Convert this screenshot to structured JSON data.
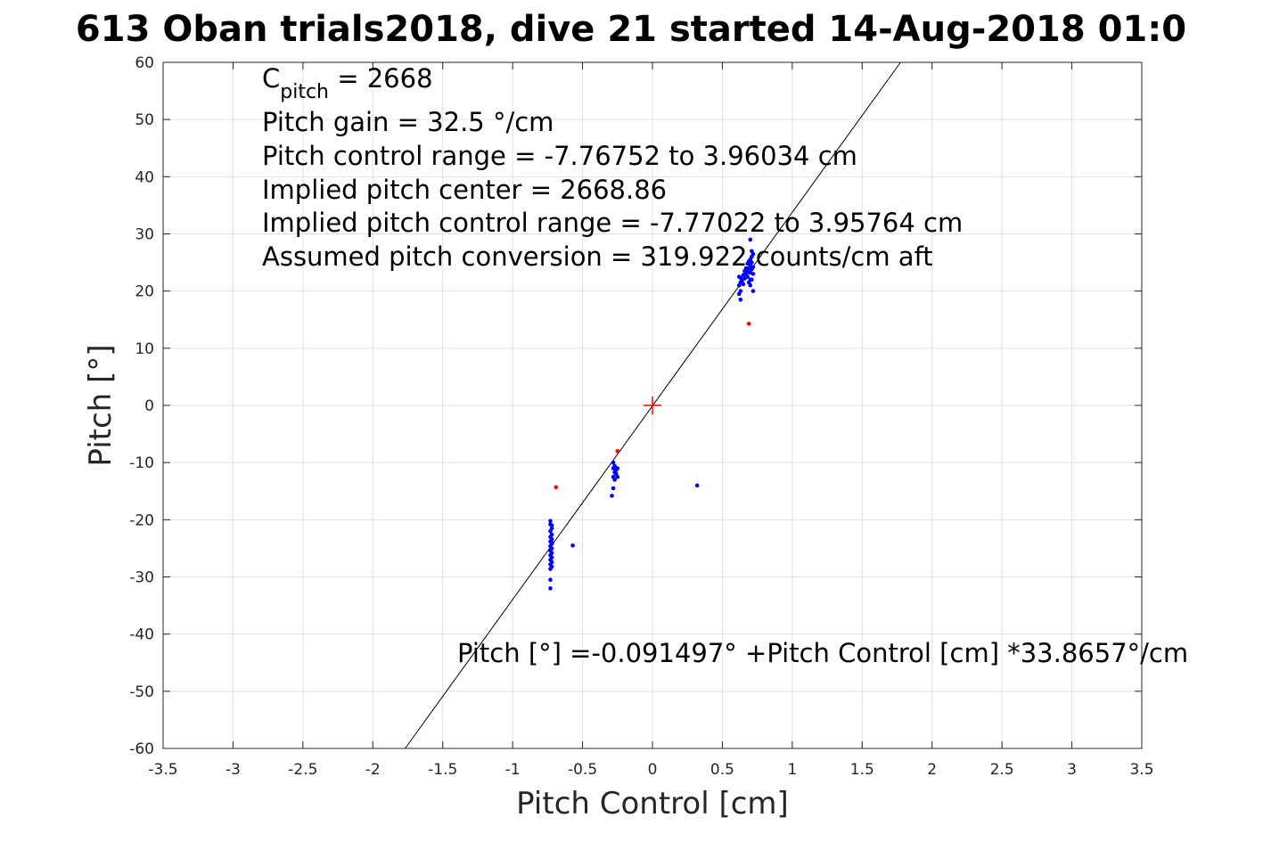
{
  "chart_data": {
    "type": "scatter",
    "title": "613 Oban trials2018, dive 21 started 14-Aug-2018 01:0",
    "xlabel": "Pitch Control [cm]",
    "ylabel": "Pitch [°]",
    "xlim": [
      -3.5,
      3.5
    ],
    "ylim": [
      -60,
      60
    ],
    "xticks": [
      -3.5,
      -3,
      -2.5,
      -2,
      -1.5,
      -1,
      -0.5,
      0,
      0.5,
      1,
      1.5,
      2,
      2.5,
      3,
      3.5
    ],
    "xtick_labels": [
      "-3.5",
      "-3",
      "-2.5",
      "-2",
      "-1.5",
      "-1",
      "-0.5",
      "0",
      "0.5",
      "1",
      "1.5",
      "2",
      "2.5",
      "3",
      "3.5"
    ],
    "yticks": [
      60,
      50,
      40,
      30,
      20,
      10,
      0,
      -10,
      -20,
      -30,
      -40,
      -50,
      -60
    ],
    "ytick_labels": [
      "60",
      "50",
      "40",
      "30",
      "20",
      "10",
      "0",
      "-10",
      "-20",
      "-30",
      "-40",
      "-50",
      "-60"
    ],
    "grid": true,
    "annotations": {
      "cpitch_base": "C",
      "cpitch_sub": "pitch",
      "cpitch_value": " = 2668",
      "lines": [
        "Pitch gain = 32.5 °/cm",
        "Pitch control range = -7.76752 to 3.96034 cm",
        "Implied pitch center = 2668.86",
        "Implied pitch control range = -7.77022 to 3.95764 cm",
        "Assumed pitch conversion = 319.922 counts/cm aft"
      ],
      "fit_equation": "Pitch [°] =-0.091497° +Pitch Control [cm] *33.8657°/cm"
    },
    "fit_line": {
      "intercept": -0.091497,
      "slope": 33.8657,
      "color": "#000000"
    },
    "center_marker": {
      "x": 0,
      "y": 0,
      "color": "#ff0000",
      "marker": "plus"
    },
    "series": [
      {
        "color": "#0000ff",
        "points": [
          [
            -0.73,
            -20.2
          ],
          [
            -0.73,
            -20.8
          ],
          [
            -0.72,
            -21.5
          ],
          [
            -0.73,
            -22.0
          ],
          [
            -0.72,
            -22.6
          ],
          [
            -0.73,
            -23.0
          ],
          [
            -0.72,
            -23.4
          ],
          [
            -0.73,
            -23.8
          ],
          [
            -0.72,
            -24.2
          ],
          [
            -0.73,
            -24.6
          ],
          [
            -0.72,
            -25.0
          ],
          [
            -0.73,
            -25.4
          ],
          [
            -0.72,
            -25.8
          ],
          [
            -0.73,
            -26.2
          ],
          [
            -0.72,
            -26.6
          ],
          [
            -0.73,
            -27.0
          ],
          [
            -0.72,
            -27.4
          ],
          [
            -0.73,
            -27.8
          ],
          [
            -0.72,
            -28.2
          ],
          [
            -0.73,
            -28.6
          ],
          [
            -0.72,
            -21.0
          ],
          [
            -0.72,
            -24.0
          ],
          [
            -0.73,
            -30.5
          ],
          [
            -0.73,
            -32.0
          ],
          [
            -0.57,
            -24.5
          ],
          [
            -0.28,
            -10.0
          ],
          [
            -0.27,
            -10.6
          ],
          [
            -0.28,
            -11.0
          ],
          [
            -0.26,
            -11.3
          ],
          [
            -0.27,
            -11.7
          ],
          [
            -0.26,
            -12.0
          ],
          [
            -0.28,
            -12.5
          ],
          [
            -0.25,
            -12.5
          ],
          [
            -0.27,
            -13.0
          ],
          [
            -0.28,
            -14.5
          ],
          [
            -0.29,
            -15.8
          ],
          [
            -0.25,
            -11.0
          ],
          [
            0.32,
            -14.0
          ],
          [
            0.62,
            21.0
          ],
          [
            0.63,
            21.5
          ],
          [
            0.64,
            22.0
          ],
          [
            0.62,
            22.5
          ],
          [
            0.63,
            20.0
          ],
          [
            0.62,
            19.5
          ],
          [
            0.63,
            18.5
          ],
          [
            0.65,
            21.2
          ],
          [
            0.66,
            22.2
          ],
          [
            0.67,
            23.0
          ],
          [
            0.68,
            23.5
          ],
          [
            0.69,
            24.0
          ],
          [
            0.7,
            24.5
          ],
          [
            0.71,
            25.0
          ],
          [
            0.7,
            25.5
          ],
          [
            0.71,
            26.0
          ],
          [
            0.72,
            26.5
          ],
          [
            0.7,
            22.0
          ],
          [
            0.69,
            21.5
          ],
          [
            0.68,
            22.5
          ],
          [
            0.67,
            24.0
          ],
          [
            0.66,
            23.5
          ],
          [
            0.65,
            22.8
          ],
          [
            0.64,
            21.8
          ],
          [
            0.63,
            22.3
          ],
          [
            0.7,
            23.2
          ],
          [
            0.71,
            23.8
          ],
          [
            0.72,
            24.2
          ],
          [
            0.72,
            23.0
          ],
          [
            0.71,
            22.0
          ],
          [
            0.7,
            21.0
          ],
          [
            0.72,
            20.0
          ],
          [
            0.7,
            29.0
          ],
          [
            0.71,
            27.0
          ],
          [
            0.69,
            25.2
          ],
          [
            0.68,
            24.8
          ]
        ]
      },
      {
        "color": "#ff0000",
        "points": [
          [
            -0.69,
            -14.3
          ],
          [
            -0.25,
            -8.0
          ],
          [
            0.69,
            14.3
          ]
        ]
      }
    ]
  }
}
